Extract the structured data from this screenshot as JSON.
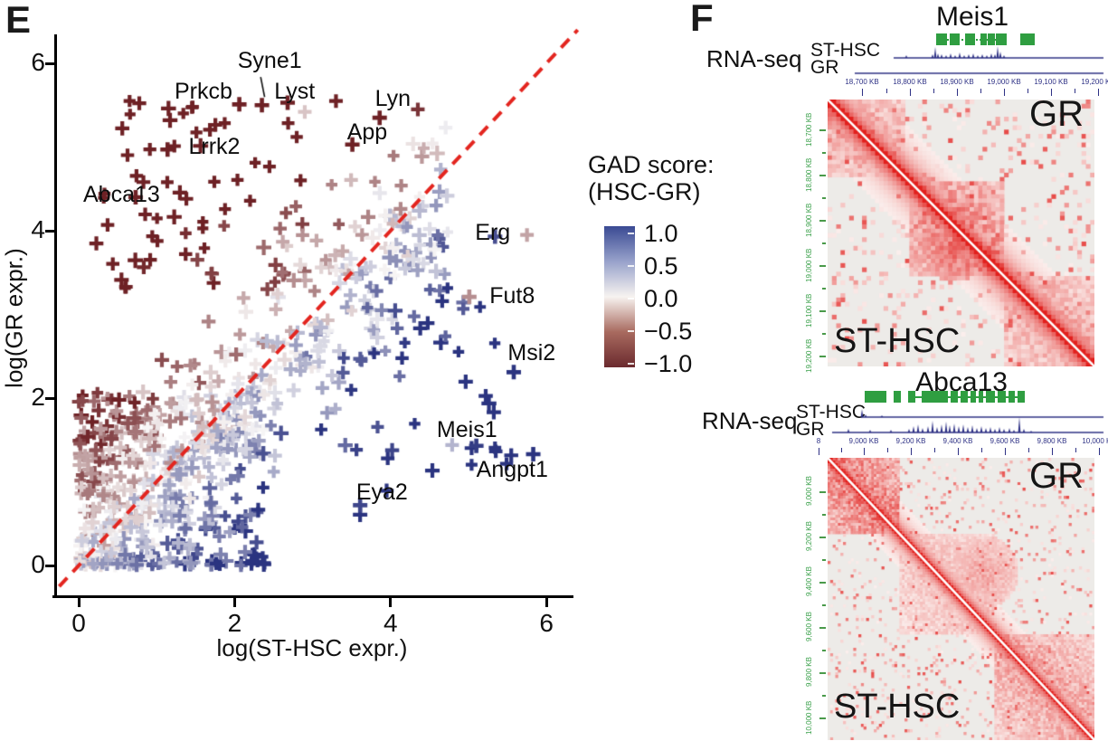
{
  "panelE": {
    "label": "E",
    "xlabel": "log(ST-HSC expr.)",
    "ylabel": "log(GR expr.)",
    "x_ticks": [
      "0",
      "2",
      "4",
      "6"
    ],
    "y_ticks": [
      "6",
      "4",
      "2",
      "0"
    ],
    "legend": {
      "title_line1": "GAD score:",
      "title_line2": "(HSC-GR)",
      "tick_labels": [
        "1.0",
        "0.5",
        "0.0",
        "−0.5",
        "−1.0"
      ],
      "gradient": [
        "#3a4a93",
        "#98a2cb",
        "#f7f3f0",
        "#a86a5f",
        "#6b2a2e"
      ]
    }
  },
  "panelF": {
    "label": "F",
    "blocks": [
      {
        "title": "Meis1",
        "rnaseq_label": "RNA-seq",
        "track1": "ST-HSC",
        "track2": "GR",
        "hic_upper": "GR",
        "hic_lower": "ST-HSC",
        "ruler_labels": [
          "18,700 KB",
          "18,800 KB",
          "18,900 KB",
          "19,000 KB",
          "19,100 KB",
          "19,200 KB"
        ],
        "ruler_centers": [
          953,
          1006,
          1058,
          1110,
          1162,
          1214
        ],
        "hic_axis_labels": [
          "18,700 KB",
          "18,800 KB",
          "18,900 KB",
          "19,000 KB",
          "19,100 KB",
          "19,200 KB"
        ],
        "hic_axis_centers": [
          143,
          193,
          243,
          293,
          343,
          393
        ],
        "gene_model": {
          "connector": "dotted",
          "connector_span": [
            1035,
            1113
          ],
          "blocks": [
            [
              1035,
              12
            ],
            [
              1050,
              11
            ],
            [
              1067,
              11
            ],
            [
              1084,
              7
            ],
            [
              1092,
              8
            ],
            [
              1101,
              12
            ],
            [
              1128,
              16
            ]
          ]
        },
        "tracks": {
          "color": "#2e3185",
          "sthsc_line": [
            988,
            1220
          ],
          "gr_line": [
            945,
            1220
          ],
          "sthsc_peaks": [
            [
              1002,
              3
            ],
            [
              1031,
              4
            ],
            [
              1034,
              12
            ],
            [
              1037,
              5
            ],
            [
              1041,
              4
            ],
            [
              1046,
              3
            ],
            [
              1051,
              5
            ],
            [
              1056,
              3
            ],
            [
              1061,
              6
            ],
            [
              1066,
              3
            ],
            [
              1071,
              4
            ],
            [
              1076,
              5
            ],
            [
              1081,
              3
            ],
            [
              1086,
              4
            ],
            [
              1091,
              3
            ],
            [
              1096,
              5
            ],
            [
              1100,
              4
            ],
            [
              1103,
              13
            ],
            [
              1106,
              7
            ],
            [
              1110,
              3
            ]
          ],
          "gr_peaks": []
        }
      },
      {
        "title": "Abca13",
        "rnaseq_label": "RNA-seq",
        "track1": "ST-HSC",
        "track2": "GR",
        "hic_upper": "GR",
        "hic_lower": "ST-HSC",
        "ruler_labels": [
          "8",
          "9,000 KB",
          "9,200 KB",
          "9,400 KB",
          "9,600 KB",
          "9,800 KB",
          "10,000 KB"
        ],
        "ruler_centers": [
          905,
          955,
          1007,
          1059,
          1111,
          1163,
          1215
        ],
        "hic_axis_labels": [
          "9,000 KB",
          "9,200 KB",
          "9,400 KB",
          "9,600 KB",
          "9,800 KB",
          "10,000 KB"
        ],
        "hic_axis_centers": [
          543,
          593,
          643,
          693,
          743,
          793
        ],
        "gene_model": {
          "connector": "solid",
          "connector_span": [
            1004,
            1133
          ],
          "blocks": [
            [
              956,
              24
            ],
            [
              988,
              8
            ],
            [
              1004,
              8
            ],
            [
              1019,
              29
            ],
            [
              1051,
              8
            ],
            [
              1062,
              8
            ],
            [
              1073,
              6
            ],
            [
              1082,
              5
            ],
            [
              1090,
              10
            ],
            [
              1103,
              9
            ],
            [
              1115,
              7
            ],
            [
              1125,
              8
            ]
          ]
        },
        "tracks": {
          "color": "#2e3185",
          "sthsc_line": [
            952,
            1220
          ],
          "gr_line": [
            920,
            1220
          ],
          "sthsc_peaks": [
            [
              953,
              9
            ],
            [
              957,
              3
            ],
            [
              975,
              2
            ]
          ],
          "gr_peaks": [
            [
              938,
              4
            ],
            [
              962,
              3
            ],
            [
              985,
              3
            ],
            [
              1005,
              4
            ],
            [
              1010,
              7
            ],
            [
              1015,
              9
            ],
            [
              1020,
              5
            ],
            [
              1026,
              7
            ],
            [
              1031,
              13
            ],
            [
              1036,
              6
            ],
            [
              1041,
              9
            ],
            [
              1046,
              12
            ],
            [
              1050,
              8
            ],
            [
              1055,
              10
            ],
            [
              1060,
              7
            ],
            [
              1065,
              9
            ],
            [
              1070,
              6
            ],
            [
              1075,
              8
            ],
            [
              1080,
              5
            ],
            [
              1085,
              7
            ],
            [
              1090,
              5
            ],
            [
              1095,
              6
            ],
            [
              1100,
              4
            ],
            [
              1105,
              6
            ],
            [
              1110,
              4
            ],
            [
              1116,
              5
            ],
            [
              1121,
              3
            ],
            [
              1127,
              17
            ],
            [
              1132,
              4
            ],
            [
              1140,
              2
            ]
          ]
        }
      }
    ]
  },
  "chart_data": [
    {
      "type": "scatter",
      "marker": "plus",
      "title": "",
      "xlabel": "log(ST-HSC expr.)",
      "ylabel": "log(GR expr.)",
      "xlim": [
        -0.3,
        6.4
      ],
      "ylim": [
        -0.3,
        6.4
      ],
      "x_ticks": [
        0,
        2,
        4,
        6
      ],
      "y_ticks": [
        0,
        2,
        4,
        6
      ],
      "grid": false,
      "identity_line": {
        "color": "#e3251f",
        "dash": [
          13,
          9
        ],
        "width": 4,
        "from": -0.25,
        "to": 6.4
      },
      "color_scale": {
        "label": "GAD score: (HSC-GR)",
        "min": -1,
        "max": 1,
        "neg_color": "#6e2125",
        "mid_color": "#f8f6f6",
        "pos_color": "#2b3480"
      },
      "labeled_genes": [
        {
          "name": "Syne1",
          "x": 2.35,
          "y": 5.5,
          "score": -1,
          "label_x": 2.45,
          "label_y": 6.02,
          "leader": true
        },
        {
          "name": "Prkcb",
          "x": 2.06,
          "y": 5.51,
          "score": -1,
          "label_x": 1.6,
          "label_y": 5.65
        },
        {
          "name": "Lyst",
          "x": 2.68,
          "y": 5.53,
          "score": -1,
          "label_x": 2.77,
          "label_y": 5.65
        },
        {
          "name": "Lyn",
          "x": 3.86,
          "y": 5.35,
          "score": -1,
          "label_x": 4.03,
          "label_y": 5.57
        },
        {
          "name": "App",
          "x": 3.51,
          "y": 5.03,
          "score": -1,
          "label_x": 3.7,
          "label_y": 5.17
        },
        {
          "name": "Lrrk2",
          "x": 1.14,
          "y": 4.97,
          "score": -1,
          "label_x": 1.74,
          "label_y": 5.0
        },
        {
          "name": "Abca13",
          "x": 0.73,
          "y": 4.4,
          "score": -1,
          "label_x": 0.55,
          "label_y": 4.42
        },
        {
          "name": "Erg",
          "x": 5.34,
          "y": 3.93,
          "score": 0.85,
          "label_x": 5.31,
          "label_y": 3.97
        },
        {
          "name": "Fut8",
          "x": 5.01,
          "y": 3.21,
          "score": -0.45,
          "label_x": 5.56,
          "label_y": 3.21
        },
        {
          "name": "Msi2",
          "x": 5.58,
          "y": 2.31,
          "score": 1,
          "label_x": 5.81,
          "label_y": 2.53
        },
        {
          "name": "Meis1",
          "x": 5.1,
          "y": 1.43,
          "score": 0.95,
          "label_x": 4.98,
          "label_y": 1.61
        },
        {
          "name": "Angpt1",
          "x": 5.83,
          "y": 1.33,
          "score": 1,
          "label_x": 5.56,
          "label_y": 1.14
        },
        {
          "name": "Eya2",
          "x": 3.61,
          "y": 0.72,
          "score": 0.9,
          "label_x": 3.89,
          "label_y": 0.86
        }
      ],
      "extra_points": [
        [
          4.79,
          1.44,
          0.3
        ],
        [
          5.75,
          3.95,
          -0.35
        ],
        [
          2.9,
          5.42,
          -0.2
        ],
        [
          3.3,
          5.55,
          -1
        ],
        [
          4.35,
          5.45,
          -0.9
        ]
      ],
      "background_points": {
        "seed": 42,
        "n": 760,
        "low_cluster_frac": 0.36,
        "band_frac": 0.5,
        "upper_cloud_frac": 0.09,
        "score_gain": 0.5,
        "score_noise": 0.85
      }
    },
    {
      "type": "heatmap",
      "name": "Hi-C contact map, Meis1 locus",
      "dom_id": "f1-hic",
      "upper_triangle": "GR",
      "lower_triangle": "ST-HSC",
      "axis_tick_labels": [
        "18,700 KB",
        "18,800 KB",
        "18,900 KB",
        "19,000 KB",
        "19,100 KB",
        "19,200 KB"
      ],
      "bins": 62,
      "seed": 11,
      "decay": 15,
      "speckle": 0.17,
      "diag_width": 1,
      "tads": [
        [
          0,
          0.28,
          0.62
        ],
        [
          0.3,
          0.66,
          0.85
        ],
        [
          0.66,
          1,
          0.6
        ]
      ],
      "blobs": [
        [
          0.46,
          0.55,
          0.12,
          0.9
        ]
      ],
      "bg": "#edebe8",
      "fg": "#e2201d"
    },
    {
      "type": "heatmap",
      "name": "Hi-C contact map, Abca13 locus",
      "dom_id": "f2-hic",
      "upper_triangle": "GR",
      "lower_triangle": "ST-HSC",
      "axis_tick_labels": [
        "9,000 KB",
        "9,200 KB",
        "9,400 KB",
        "9,600 KB",
        "9,800 KB",
        "10,000 KB"
      ],
      "bins": 104,
      "seed": 23,
      "decay": 26,
      "speckle": 0.13,
      "diag_width": 1,
      "tads": [
        [
          0,
          0.26,
          0.85
        ],
        [
          0.26,
          0.62,
          0.42
        ],
        [
          0.62,
          1,
          0.62
        ]
      ],
      "blobs": [
        [
          0.58,
          0.4,
          0.13,
          0.5
        ]
      ],
      "bg": "#edebe8",
      "fg": "#e2201d"
    }
  ]
}
